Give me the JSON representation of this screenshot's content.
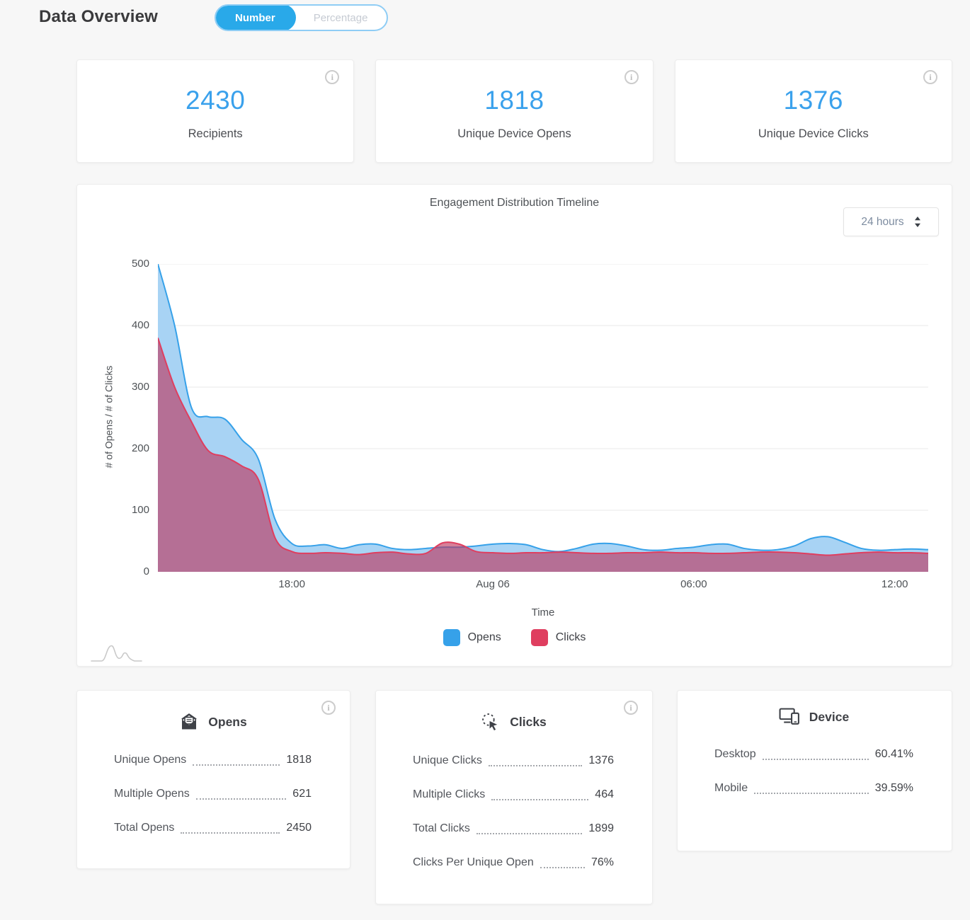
{
  "page": {
    "title": "Data Overview"
  },
  "toggle": {
    "options": [
      {
        "label": "Number",
        "active": true
      },
      {
        "label": "Percentage",
        "active": false
      }
    ]
  },
  "stat_cards": [
    {
      "value": "2430",
      "label": "Recipients"
    },
    {
      "value": "1818",
      "label": "Unique Device Opens"
    },
    {
      "value": "1376",
      "label": "Unique Device Clicks"
    }
  ],
  "timeline": {
    "title": "Engagement Distribution Timeline",
    "range_selector": {
      "label": "24 hours"
    },
    "chart_data": {
      "type": "area",
      "title": "Engagement Distribution Timeline",
      "xlabel": "Time",
      "ylabel": "# of Opens / # of Clicks",
      "ylim": [
        0,
        500
      ],
      "yticks": [
        0,
        100,
        200,
        300,
        400,
        500
      ],
      "grid": "horizontal",
      "legend_position": "bottom",
      "x": [
        "14:00",
        "14:30",
        "15:00",
        "15:30",
        "16:00",
        "16:30",
        "17:00",
        "17:30",
        "18:00",
        "18:30",
        "19:00",
        "19:30",
        "20:00",
        "20:30",
        "21:00",
        "21:30",
        "22:00",
        "22:30",
        "23:00",
        "23:30",
        "00:00",
        "00:30",
        "01:00",
        "01:30",
        "02:00",
        "02:30",
        "03:00",
        "03:30",
        "04:00",
        "04:30",
        "05:00",
        "05:30",
        "06:00",
        "06:30",
        "07:00",
        "07:30",
        "08:00",
        "08:30",
        "09:00",
        "09:30",
        "10:00",
        "10:30",
        "11:00",
        "11:30",
        "12:00",
        "12:30",
        "13:00"
      ],
      "x_tick_labels": [
        {
          "index": 8,
          "label": "18:00"
        },
        {
          "index": 20,
          "label": "Aug 06"
        },
        {
          "index": 32,
          "label": "06:00"
        },
        {
          "index": 44,
          "label": "12:00"
        }
      ],
      "series": [
        {
          "name": "Opens",
          "color": "#36a1e9",
          "fill": "#a8d3f4",
          "values": [
            500,
            400,
            267,
            252,
            248,
            215,
            183,
            85,
            46,
            42,
            44,
            38,
            44,
            45,
            38,
            36,
            38,
            40,
            40,
            42,
            45,
            46,
            44,
            36,
            33,
            38,
            45,
            46,
            42,
            36,
            35,
            38,
            40,
            44,
            45,
            38,
            35,
            36,
            42,
            54,
            57,
            48,
            38,
            35,
            36,
            37,
            36
          ]
        },
        {
          "name": "Clicks",
          "color": "#df3e5f",
          "fill": "rgba(189,50,90,0.62)",
          "values": [
            380,
            300,
            244,
            197,
            187,
            172,
            150,
            55,
            33,
            30,
            31,
            30,
            28,
            31,
            32,
            29,
            30,
            47,
            45,
            33,
            31,
            30,
            31,
            31,
            32,
            31,
            30,
            30,
            31,
            31,
            32,
            31,
            31,
            30,
            30,
            31,
            32,
            32,
            31,
            29,
            27,
            29,
            31,
            32,
            31,
            31,
            30
          ]
        }
      ]
    }
  },
  "breakdown_cards": [
    {
      "icon": "envelope-open-icon",
      "title": "Opens",
      "has_info": true,
      "rows": [
        {
          "label": "Unique Opens",
          "value": "1818"
        },
        {
          "label": "Multiple Opens",
          "value": "621"
        },
        {
          "label": "Total Opens",
          "value": "2450"
        }
      ]
    },
    {
      "icon": "cursor-click-icon",
      "title": "Clicks",
      "has_info": true,
      "rows": [
        {
          "label": "Unique Clicks",
          "value": "1376"
        },
        {
          "label": "Multiple Clicks",
          "value": "464"
        },
        {
          "label": "Total Clicks",
          "value": "1899"
        },
        {
          "label": "Clicks Per Unique Open",
          "value": "76%"
        }
      ]
    },
    {
      "icon": "devices-icon",
      "title": "Device",
      "has_info": false,
      "rows": [
        {
          "label": "Desktop",
          "value": "60.41%"
        },
        {
          "label": "Mobile",
          "value": "39.59%"
        }
      ]
    }
  ]
}
